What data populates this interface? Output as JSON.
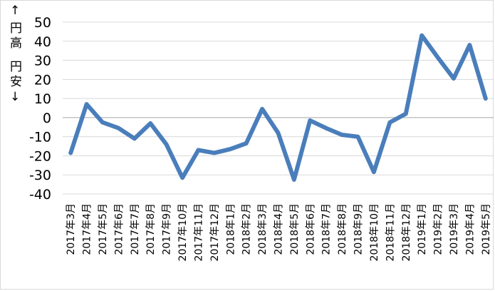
{
  "chart_data": {
    "type": "line",
    "title": "",
    "xlabel": "",
    "ylabel_up": "↑円高",
    "ylabel_down": "円安↓",
    "ylim": [
      -40,
      50
    ],
    "yticks": [
      50,
      40,
      30,
      20,
      10,
      0,
      -10,
      -20,
      -30,
      -40
    ],
    "grid": true,
    "legend": "none",
    "color": "#4a7ebb",
    "categories": [
      "2017年3月",
      "2017年4月",
      "2017年5月",
      "2017年6月",
      "2017年7月",
      "2017年8月",
      "2017年9月",
      "2017年10月",
      "2017年11月",
      "2017年12月",
      "2018年1月",
      "2018年2月",
      "2018年3月",
      "2018年4月",
      "2018年5月",
      "2018年6月",
      "2018年7月",
      "2018年8月",
      "2018年9月",
      "2018年10月",
      "2018年11月",
      "2018年12月",
      "2019年1月",
      "2019年2月",
      "2019年3月",
      "2019年4月",
      "2019年5月"
    ],
    "series": [
      {
        "values": [
          -18.5,
          7,
          -2.5,
          -5.5,
          -11,
          -3,
          -14,
          -31.5,
          -17,
          -18.5,
          -16.5,
          -13.5,
          4.5,
          -8,
          -32.5,
          -1.5,
          -5.5,
          -9,
          -10,
          -28.5,
          -2.5,
          2,
          43,
          31.5,
          20.5,
          38,
          10
        ]
      }
    ]
  }
}
